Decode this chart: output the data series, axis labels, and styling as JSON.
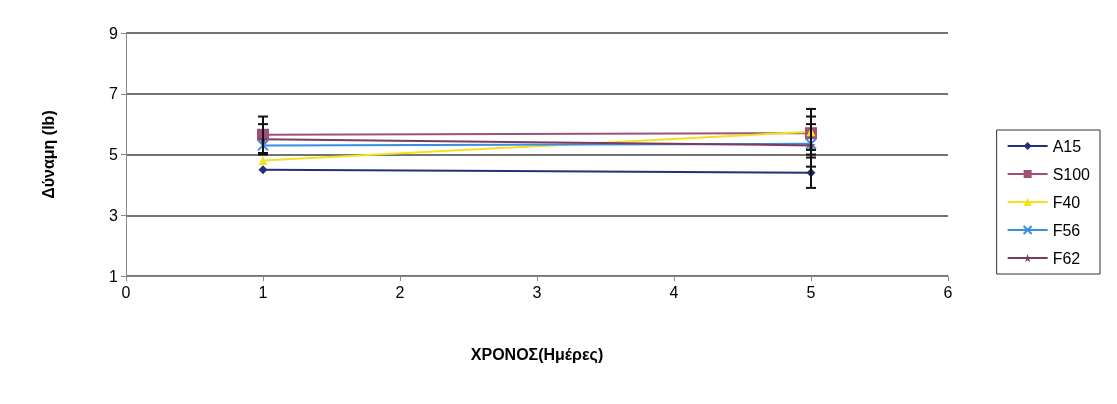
{
  "chart_data": {
    "type": "line",
    "xlabel": "ΧΡΟΝΟΣ(Ημέρες)",
    "ylabel": "Δύναμη (lb)",
    "xlim": [
      0,
      6
    ],
    "xticks": [
      0,
      1,
      2,
      3,
      4,
      5,
      6
    ],
    "ylim": [
      1,
      9
    ],
    "yticks": [
      1,
      3,
      5,
      7,
      9
    ],
    "grid": "y",
    "legend": "right",
    "x": [
      1,
      5
    ],
    "series": [
      {
        "name": "A15",
        "color": "#22307a",
        "marker": "diamond",
        "values": [
          4.5,
          4.4
        ],
        "errors": [
          null,
          0.5
        ]
      },
      {
        "name": "S100",
        "color": "#a05078",
        "marker": "square",
        "values": [
          5.65,
          5.7
        ],
        "errors": [
          0.6,
          0.55
        ]
      },
      {
        "name": "F40",
        "color": "#f2e21e",
        "marker": "triangle",
        "values": [
          4.8,
          5.75
        ],
        "errors": [
          null,
          0.75
        ]
      },
      {
        "name": "F56",
        "color": "#3a8ee0",
        "marker": "cross",
        "values": [
          5.3,
          5.35
        ],
        "errors": [
          null,
          null
        ]
      },
      {
        "name": "F62",
        "color": "#7a3c62",
        "marker": "star",
        "values": [
          5.5,
          5.3
        ],
        "errors": [
          0.5,
          0.7
        ]
      }
    ]
  }
}
